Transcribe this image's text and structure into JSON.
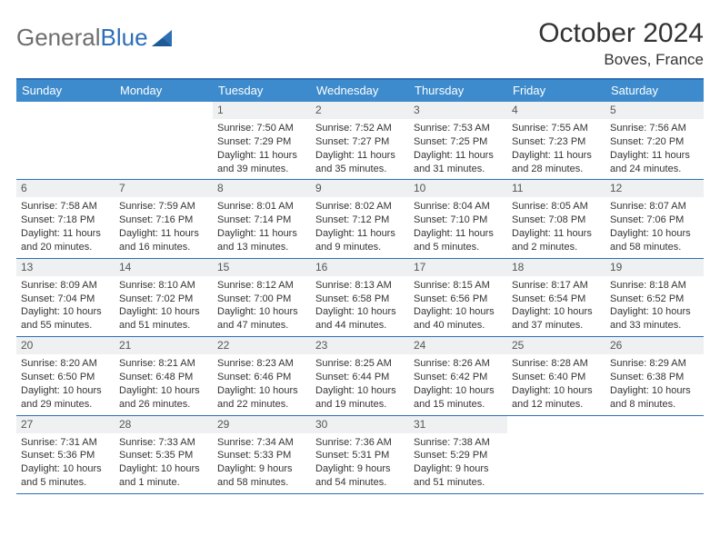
{
  "brand": {
    "word1": "General",
    "word2": "Blue"
  },
  "title": "October 2024",
  "location": "Boves, France",
  "colors": {
    "header_bar": "#3d8bcc",
    "border": "#2d6fb5",
    "daynum_bg": "#eef0f1",
    "logo_gray": "#6e6e6e",
    "logo_blue": "#2d6fb5"
  },
  "dow": [
    "Sunday",
    "Monday",
    "Tuesday",
    "Wednesday",
    "Thursday",
    "Friday",
    "Saturday"
  ],
  "weeks": [
    [
      {
        "empty": true
      },
      {
        "empty": true
      },
      {
        "n": "1",
        "sr": "7:50 AM",
        "ss": "7:29 PM",
        "dl": "11 hours and 39 minutes."
      },
      {
        "n": "2",
        "sr": "7:52 AM",
        "ss": "7:27 PM",
        "dl": "11 hours and 35 minutes."
      },
      {
        "n": "3",
        "sr": "7:53 AM",
        "ss": "7:25 PM",
        "dl": "11 hours and 31 minutes."
      },
      {
        "n": "4",
        "sr": "7:55 AM",
        "ss": "7:23 PM",
        "dl": "11 hours and 28 minutes."
      },
      {
        "n": "5",
        "sr": "7:56 AM",
        "ss": "7:20 PM",
        "dl": "11 hours and 24 minutes."
      }
    ],
    [
      {
        "n": "6",
        "sr": "7:58 AM",
        "ss": "7:18 PM",
        "dl": "11 hours and 20 minutes."
      },
      {
        "n": "7",
        "sr": "7:59 AM",
        "ss": "7:16 PM",
        "dl": "11 hours and 16 minutes."
      },
      {
        "n": "8",
        "sr": "8:01 AM",
        "ss": "7:14 PM",
        "dl": "11 hours and 13 minutes."
      },
      {
        "n": "9",
        "sr": "8:02 AM",
        "ss": "7:12 PM",
        "dl": "11 hours and 9 minutes."
      },
      {
        "n": "10",
        "sr": "8:04 AM",
        "ss": "7:10 PM",
        "dl": "11 hours and 5 minutes."
      },
      {
        "n": "11",
        "sr": "8:05 AM",
        "ss": "7:08 PM",
        "dl": "11 hours and 2 minutes."
      },
      {
        "n": "12",
        "sr": "8:07 AM",
        "ss": "7:06 PM",
        "dl": "10 hours and 58 minutes."
      }
    ],
    [
      {
        "n": "13",
        "sr": "8:09 AM",
        "ss": "7:04 PM",
        "dl": "10 hours and 55 minutes."
      },
      {
        "n": "14",
        "sr": "8:10 AM",
        "ss": "7:02 PM",
        "dl": "10 hours and 51 minutes."
      },
      {
        "n": "15",
        "sr": "8:12 AM",
        "ss": "7:00 PM",
        "dl": "10 hours and 47 minutes."
      },
      {
        "n": "16",
        "sr": "8:13 AM",
        "ss": "6:58 PM",
        "dl": "10 hours and 44 minutes."
      },
      {
        "n": "17",
        "sr": "8:15 AM",
        "ss": "6:56 PM",
        "dl": "10 hours and 40 minutes."
      },
      {
        "n": "18",
        "sr": "8:17 AM",
        "ss": "6:54 PM",
        "dl": "10 hours and 37 minutes."
      },
      {
        "n": "19",
        "sr": "8:18 AM",
        "ss": "6:52 PM",
        "dl": "10 hours and 33 minutes."
      }
    ],
    [
      {
        "n": "20",
        "sr": "8:20 AM",
        "ss": "6:50 PM",
        "dl": "10 hours and 29 minutes."
      },
      {
        "n": "21",
        "sr": "8:21 AM",
        "ss": "6:48 PM",
        "dl": "10 hours and 26 minutes."
      },
      {
        "n": "22",
        "sr": "8:23 AM",
        "ss": "6:46 PM",
        "dl": "10 hours and 22 minutes."
      },
      {
        "n": "23",
        "sr": "8:25 AM",
        "ss": "6:44 PM",
        "dl": "10 hours and 19 minutes."
      },
      {
        "n": "24",
        "sr": "8:26 AM",
        "ss": "6:42 PM",
        "dl": "10 hours and 15 minutes."
      },
      {
        "n": "25",
        "sr": "8:28 AM",
        "ss": "6:40 PM",
        "dl": "10 hours and 12 minutes."
      },
      {
        "n": "26",
        "sr": "8:29 AM",
        "ss": "6:38 PM",
        "dl": "10 hours and 8 minutes."
      }
    ],
    [
      {
        "n": "27",
        "sr": "7:31 AM",
        "ss": "5:36 PM",
        "dl": "10 hours and 5 minutes."
      },
      {
        "n": "28",
        "sr": "7:33 AM",
        "ss": "5:35 PM",
        "dl": "10 hours and 1 minute."
      },
      {
        "n": "29",
        "sr": "7:34 AM",
        "ss": "5:33 PM",
        "dl": "9 hours and 58 minutes."
      },
      {
        "n": "30",
        "sr": "7:36 AM",
        "ss": "5:31 PM",
        "dl": "9 hours and 54 minutes."
      },
      {
        "n": "31",
        "sr": "7:38 AM",
        "ss": "5:29 PM",
        "dl": "9 hours and 51 minutes."
      },
      {
        "empty": true
      },
      {
        "empty": true
      }
    ]
  ],
  "labels": {
    "sunrise": "Sunrise:",
    "sunset": "Sunset:",
    "daylight": "Daylight:"
  }
}
